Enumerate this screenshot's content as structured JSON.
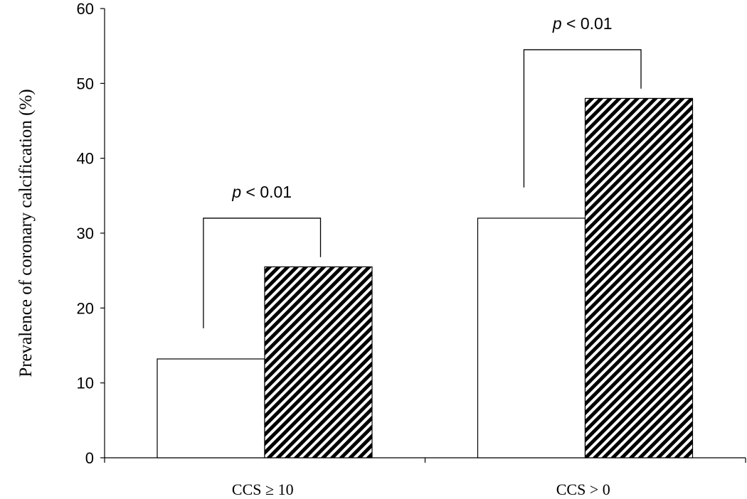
{
  "chart_data": {
    "type": "bar",
    "title": "",
    "xlabel": "",
    "ylabel": "Prevalence of coronary calcification (%)",
    "ylim": [
      0,
      60
    ],
    "yticks": [
      "0",
      "10",
      "20",
      "30",
      "40",
      "50",
      "60"
    ],
    "categories": [
      "CCS ≥ 10",
      "CCS > 0"
    ],
    "series": [
      {
        "values": [
          13.2,
          32
        ],
        "fill": "#ffffff",
        "pattern": "none"
      },
      {
        "values": [
          25.5,
          48
        ],
        "fill": "#000000",
        "pattern": "diagonal-stripes"
      }
    ],
    "annotations": [
      {
        "category": "CCS ≥ 10",
        "p_italic": "p",
        "p_rest": " < 0.01"
      },
      {
        "category": "CCS > 0",
        "p_italic": "p",
        "p_rest": " < 0.01"
      }
    ],
    "grid": false,
    "legend": "none"
  }
}
